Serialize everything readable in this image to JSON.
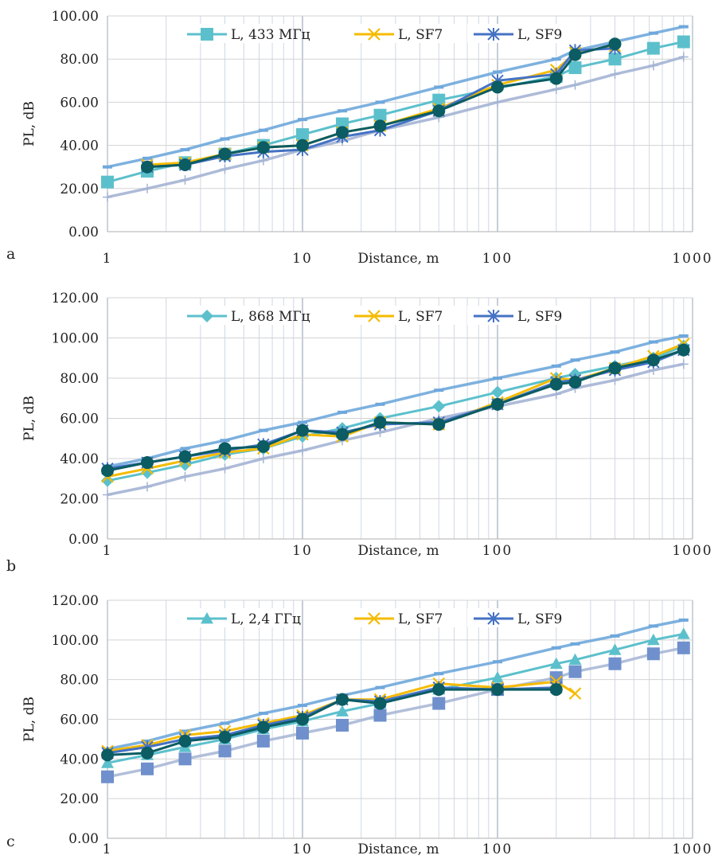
{
  "colors": {
    "ref": "#5cc0cc",
    "sf7": "#f5bb00",
    "sf9": "#4472c4",
    "measured": "#0b5c63",
    "upper": "#6fa8dc",
    "lower": "#a4b4d4",
    "extra_markers": "#6f90cc",
    "grid": "#c9d4e0"
  },
  "chart_data": [
    {
      "panel": "a",
      "type": "line",
      "xlabel": "Distance, m",
      "ylabel": "PL, dB",
      "xscale": "log",
      "xlim": [
        1,
        1000
      ],
      "ylim": [
        0,
        100
      ],
      "ytick_labels": [
        "0.00",
        "20.00",
        "40.00",
        "60.00",
        "80.00",
        "100.00"
      ],
      "xtick_labels": [
        "1",
        "10",
        "100",
        "1000"
      ],
      "legend": [
        "L, 433 МГц",
        "L, SF7",
        "L, SF9"
      ],
      "legend_position": "top",
      "series": [
        {
          "name": "L, 433 МГц",
          "marker": "square",
          "x": [
            1,
            1.6,
            2.5,
            4,
            6.3,
            10,
            16,
            25,
            50,
            200,
            250,
            400,
            630,
            900
          ],
          "y": [
            23,
            28,
            32,
            36,
            40,
            45,
            50,
            54,
            61,
            72,
            76,
            80,
            85,
            88
          ]
        },
        {
          "name": "L, SF7",
          "marker": "x",
          "x": [
            1.6,
            2.5,
            4,
            6.3,
            10,
            16,
            25,
            50,
            100,
            200,
            250,
            400
          ],
          "y": [
            31,
            32,
            36,
            39,
            40,
            46,
            49,
            57,
            68,
            75,
            83,
            86
          ]
        },
        {
          "name": "L, SF9",
          "marker": "star",
          "x": [
            1.6,
            2.5,
            4,
            6.3,
            10,
            16,
            25,
            50,
            100,
            200,
            250,
            400
          ],
          "y": [
            30,
            31,
            35,
            37,
            38,
            44,
            47,
            56,
            70,
            73,
            84,
            85
          ]
        },
        {
          "marker": "circle",
          "x": [
            1.6,
            2.5,
            4,
            6.3,
            10,
            16,
            25,
            50,
            100,
            200,
            250,
            400
          ],
          "y": [
            30,
            31,
            36,
            39,
            40,
            46,
            49,
            56,
            67,
            71,
            82,
            87
          ]
        },
        {
          "marker": "dash",
          "x": [
            1,
            1.6,
            2.5,
            4,
            6.3,
            10,
            16,
            25,
            50,
            100,
            200,
            250,
            400,
            630,
            900
          ],
          "y": [
            30,
            34,
            38,
            43,
            47,
            52,
            56,
            60,
            67,
            74,
            80,
            84,
            88,
            92,
            95
          ]
        },
        {
          "marker": "plus",
          "x": [
            1,
            1.6,
            2.5,
            4,
            6.3,
            10,
            16,
            25,
            50,
            100,
            200,
            250,
            400,
            630,
            900
          ],
          "y": [
            16,
            20,
            24,
            29,
            33,
            38,
            42,
            47,
            53,
            60,
            66,
            68,
            73,
            77,
            81
          ]
        }
      ]
    },
    {
      "panel": "b",
      "type": "line",
      "xlabel": "Distance, m",
      "ylabel": "PL, dB",
      "xscale": "log",
      "xlim": [
        1,
        1000
      ],
      "ylim": [
        0,
        120
      ],
      "ytick_labels": [
        "0.00",
        "20.00",
        "40.00",
        "60.00",
        "80.00",
        "100.00",
        "120.00"
      ],
      "xtick_labels": [
        "1",
        "10",
        "100",
        "1000"
      ],
      "legend": [
        "L, 868 МГц",
        "L, SF7",
        "L, SF9"
      ],
      "legend_position": "top",
      "series": [
        {
          "name": "L, 868 МГц",
          "marker": "diamond",
          "x": [
            1,
            1.6,
            2.5,
            4,
            6.3,
            10,
            16,
            25,
            50,
            100,
            200,
            250,
            400,
            630,
            900
          ],
          "y": [
            29,
            33,
            37,
            42,
            45,
            51,
            55,
            60,
            66,
            73,
            80,
            82,
            86,
            90,
            96
          ]
        },
        {
          "name": "L, SF7",
          "marker": "x",
          "x": [
            1,
            1.6,
            2.5,
            4,
            6.3,
            10,
            16,
            25,
            50,
            100,
            200,
            250,
            400,
            630,
            900
          ],
          "y": [
            31,
            35,
            39,
            43,
            45,
            52,
            51,
            58,
            57,
            68,
            80,
            79,
            85,
            91,
            97
          ]
        },
        {
          "name": "L, SF9",
          "marker": "star",
          "x": [
            1,
            1.6,
            2.5,
            4,
            6.3,
            10,
            16,
            25,
            50,
            100,
            200,
            250,
            400,
            630,
            900
          ],
          "y": [
            35,
            38,
            41,
            44,
            47,
            54,
            53,
            57,
            58,
            67,
            78,
            79,
            84,
            88,
            94
          ]
        },
        {
          "marker": "circle",
          "x": [
            1,
            1.6,
            2.5,
            4,
            6.3,
            10,
            16,
            25,
            50,
            100,
            200,
            250,
            400,
            630,
            900
          ],
          "y": [
            34,
            38,
            41,
            45,
            46,
            54,
            52,
            58,
            57,
            67,
            77,
            78,
            85,
            89,
            94
          ]
        },
        {
          "marker": "dash",
          "x": [
            1,
            1.6,
            2.5,
            4,
            6.3,
            10,
            16,
            25,
            50,
            100,
            200,
            250,
            400,
            630,
            900
          ],
          "y": [
            36,
            40,
            45,
            49,
            54,
            58,
            63,
            67,
            74,
            80,
            86,
            89,
            93,
            98,
            101
          ]
        },
        {
          "marker": "plus",
          "x": [
            1,
            1.6,
            2.5,
            4,
            6.3,
            10,
            16,
            25,
            50,
            100,
            200,
            250,
            400,
            630,
            900
          ],
          "y": [
            22,
            26,
            31,
            35,
            40,
            44,
            49,
            53,
            60,
            66,
            72,
            75,
            79,
            84,
            87
          ]
        }
      ]
    },
    {
      "panel": "c",
      "type": "line",
      "xlabel": "Distance, m",
      "ylabel": "PL, dB",
      "xscale": "log",
      "xlim": [
        1,
        1000
      ],
      "ylim": [
        0,
        120
      ],
      "ytick_labels": [
        "0.00",
        "20.00",
        "40.00",
        "60.00",
        "80.00",
        "100.00",
        "120.00"
      ],
      "xtick_labels": [
        "1",
        "10",
        "100",
        "1000"
      ],
      "legend": [
        "L, 2,4 ГГц",
        "L, SF7",
        "L, SF9"
      ],
      "legend_position": "top",
      "series": [
        {
          "name": "L, 2,4 ГГц",
          "marker": "triangle",
          "x": [
            1,
            1.6,
            2.5,
            4,
            6.3,
            10,
            16,
            25,
            50,
            100,
            200,
            250,
            400,
            630,
            900
          ],
          "y": [
            38,
            42,
            46,
            50,
            55,
            59,
            64,
            68,
            75,
            81,
            88,
            90,
            95,
            100,
            103
          ]
        },
        {
          "name": "L, SF7",
          "marker": "x",
          "x": [
            1,
            1.6,
            2.5,
            4,
            6.3,
            10,
            16,
            25,
            50,
            100,
            200,
            250
          ],
          "y": [
            44,
            47,
            52,
            54,
            58,
            62,
            70,
            70,
            78,
            76,
            79,
            73
          ]
        },
        {
          "name": "L, SF9",
          "marker": "star",
          "x": [
            1,
            1.6,
            2.5,
            4,
            6.3,
            10,
            16,
            25,
            50,
            100,
            200
          ],
          "y": [
            43,
            46,
            50,
            52,
            57,
            61,
            70,
            69,
            76,
            75,
            76
          ]
        },
        {
          "marker": "circle",
          "x": [
            1,
            1.6,
            2.5,
            4,
            6.3,
            10,
            16,
            25,
            50,
            100,
            200
          ],
          "y": [
            42,
            43,
            49,
            51,
            56,
            60,
            70,
            68,
            75,
            75,
            75
          ]
        },
        {
          "marker": "dash",
          "x": [
            1,
            1.6,
            2.5,
            4,
            6.3,
            10,
            16,
            25,
            50,
            100,
            200,
            250,
            400,
            630,
            900
          ],
          "y": [
            45,
            49,
            54,
            58,
            63,
            67,
            72,
            76,
            83,
            89,
            96,
            98,
            102,
            107,
            110
          ]
        },
        {
          "marker": "square",
          "x": [
            1,
            1.6,
            2.5,
            4,
            6.3,
            10,
            16,
            25,
            50,
            100,
            200,
            250,
            400,
            630,
            900
          ],
          "y": [
            31,
            35,
            40,
            44,
            49,
            53,
            57,
            62,
            68,
            75,
            81,
            84,
            88,
            93,
            96
          ]
        }
      ]
    }
  ]
}
